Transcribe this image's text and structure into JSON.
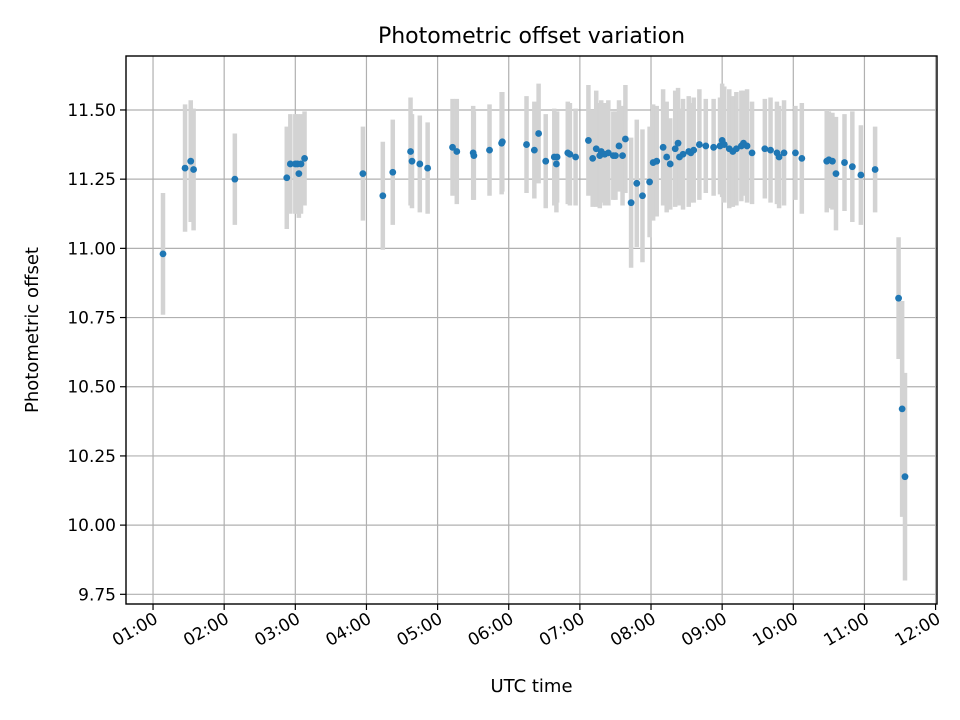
{
  "chart_data": {
    "type": "scatter",
    "title": "Photometric offset variation",
    "xlabel": "UTC time",
    "ylabel": "Photometric offset",
    "xlim": [
      0.62,
      12.02
    ],
    "ylim": [
      9.715,
      11.695
    ],
    "x_unit": "hours UTC",
    "x_tick_values": [
      1,
      2,
      3,
      4,
      5,
      6,
      7,
      8,
      9,
      10,
      11,
      12
    ],
    "x_tick_labels": [
      "01:00",
      "02:00",
      "03:00",
      "04:00",
      "05:00",
      "06:00",
      "07:00",
      "08:00",
      "09:00",
      "10:00",
      "11:00",
      "12:00"
    ],
    "y_tick_values": [
      9.75,
      10.0,
      10.25,
      10.5,
      10.75,
      11.0,
      11.25,
      11.5
    ],
    "y_tick_labels": [
      "9.75",
      "10.00",
      "10.25",
      "10.50",
      "10.75",
      "11.00",
      "11.25",
      "11.50"
    ],
    "grid": true,
    "series": [
      {
        "name": "Photometric offset",
        "color": "#1f77b4",
        "error_color": "#d3d3d3",
        "x": [
          1.14,
          1.45,
          1.53,
          1.57,
          2.15,
          2.88,
          2.93,
          3.0,
          3.03,
          3.05,
          3.08,
          3.13,
          3.95,
          4.23,
          4.37,
          4.62,
          4.64,
          4.75,
          4.86,
          5.21,
          5.27,
          5.5,
          5.51,
          5.73,
          5.9,
          5.91,
          6.25,
          6.36,
          6.42,
          6.52,
          6.64,
          6.67,
          6.68,
          6.83,
          6.86,
          6.94,
          7.12,
          7.18,
          7.23,
          7.28,
          7.3,
          7.35,
          7.4,
          7.47,
          7.5,
          7.55,
          7.6,
          7.64,
          7.72,
          7.8,
          7.88,
          7.98,
          8.03,
          8.08,
          8.17,
          8.22,
          8.27,
          8.34,
          8.38,
          8.4,
          8.45,
          8.53,
          8.56,
          8.6,
          8.68,
          8.77,
          8.88,
          8.97,
          9.0,
          9.03,
          9.1,
          9.15,
          9.2,
          9.27,
          9.3,
          9.35,
          9.42,
          9.6,
          9.68,
          9.77,
          9.8,
          9.87,
          10.03,
          10.12,
          10.47,
          10.5,
          10.55,
          10.6,
          10.72,
          10.83,
          10.95,
          11.15,
          11.48,
          11.53,
          11.57
        ],
        "y": [
          10.98,
          11.29,
          11.315,
          11.285,
          11.25,
          11.255,
          11.305,
          11.305,
          11.305,
          11.27,
          11.305,
          11.325,
          11.27,
          11.19,
          11.275,
          11.35,
          11.315,
          11.305,
          11.29,
          11.365,
          11.35,
          11.345,
          11.335,
          11.355,
          11.38,
          11.385,
          11.375,
          11.355,
          11.415,
          11.315,
          11.33,
          11.305,
          11.33,
          11.345,
          11.34,
          11.33,
          11.39,
          11.325,
          11.36,
          11.335,
          11.35,
          11.34,
          11.345,
          11.335,
          11.335,
          11.37,
          11.335,
          11.395,
          11.165,
          11.235,
          11.19,
          11.24,
          11.31,
          11.315,
          11.365,
          11.33,
          11.305,
          11.36,
          11.38,
          11.33,
          11.34,
          11.35,
          11.345,
          11.355,
          11.375,
          11.37,
          11.365,
          11.37,
          11.39,
          11.375,
          11.36,
          11.35,
          11.36,
          11.37,
          11.38,
          11.37,
          11.345,
          11.36,
          11.355,
          11.345,
          11.33,
          11.345,
          11.345,
          11.325,
          11.315,
          11.32,
          11.315,
          11.27,
          11.31,
          11.295,
          11.265,
          11.285,
          10.82,
          10.42,
          10.175
        ],
        "err": [
          0.22,
          0.23,
          0.22,
          0.22,
          0.165,
          0.185,
          0.18,
          0.18,
          0.18,
          0.16,
          0.18,
          0.17,
          0.17,
          0.195,
          0.19,
          0.195,
          0.17,
          0.175,
          0.165,
          0.175,
          0.19,
          0.17,
          0.16,
          0.165,
          0.185,
          0.18,
          0.175,
          0.175,
          0.18,
          0.17,
          0.175,
          0.175,
          0.165,
          0.185,
          0.185,
          0.175,
          0.2,
          0.175,
          0.21,
          0.19,
          0.185,
          0.185,
          0.19,
          0.16,
          0.16,
          0.165,
          0.18,
          0.195,
          0.235,
          0.23,
          0.24,
          0.2,
          0.21,
          0.2,
          0.21,
          0.2,
          0.165,
          0.21,
          0.2,
          0.175,
          0.2,
          0.2,
          0.18,
          0.19,
          0.2,
          0.17,
          0.175,
          0.175,
          0.205,
          0.21,
          0.215,
          0.2,
          0.205,
          0.2,
          0.19,
          0.205,
          0.185,
          0.18,
          0.19,
          0.185,
          0.185,
          0.19,
          0.17,
          0.2,
          0.185,
          0.175,
          0.175,
          0.205,
          0.175,
          0.2,
          0.18,
          0.155,
          0.22,
          0.39,
          0.375
        ]
      }
    ]
  }
}
